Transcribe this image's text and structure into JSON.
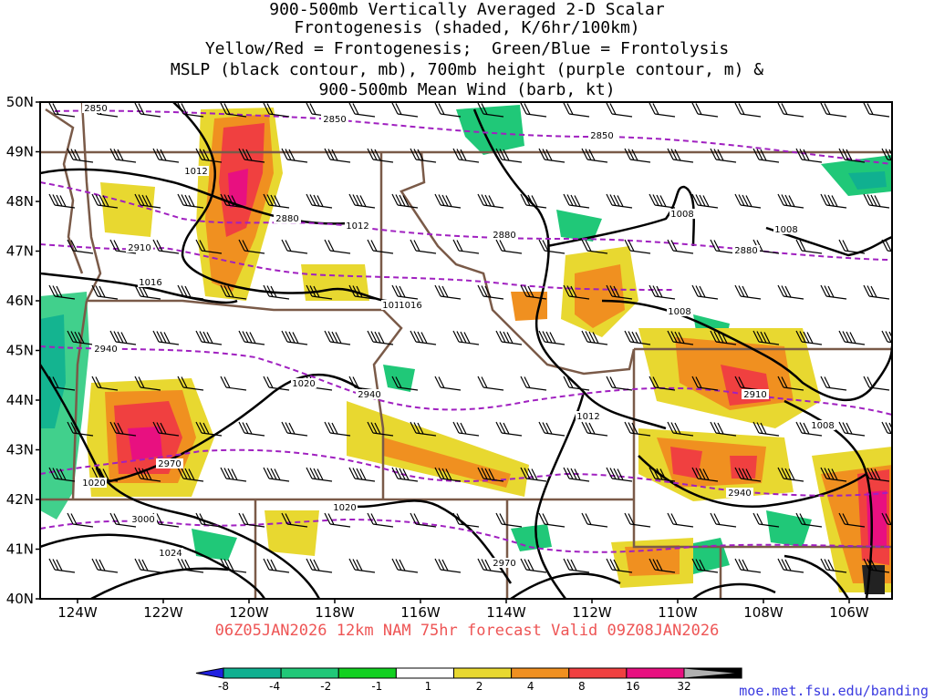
{
  "title": {
    "line1": "900-500mb Vertically Averaged 2-D Scalar",
    "line2": "Frontogenesis (shaded, K/6hr/100km)",
    "line3": "Yellow/Red = Frontogenesis;  Green/Blue = Frontolysis",
    "line4": "MSLP (black contour, mb), 700mb height (purple contour, m) &",
    "line5": "900-500mb Mean Wind (barb, kt)"
  },
  "lat_labels": [
    "50N",
    "49N",
    "48N",
    "47N",
    "46N",
    "45N",
    "44N",
    "43N",
    "42N",
    "41N",
    "40N"
  ],
  "lon_labels": [
    "124W",
    "122W",
    "120W",
    "118W",
    "116W",
    "114W",
    "112W",
    "110W",
    "108W",
    "106W"
  ],
  "footer": "06Z05JAN2026 12km NAM 75hr forecast Valid 09Z08JAN2026",
  "credit": "moe.met.fsu.edu/banding",
  "colorbar": {
    "ticks": [
      "-8",
      "-4",
      "-2",
      "-1",
      "1",
      "2",
      "4",
      "8",
      "16",
      "32"
    ],
    "colors": [
      "#2020e0",
      "#10b090",
      "#20c878",
      "#12d020",
      "#ffffff",
      "#e8d830",
      "#f09020",
      "#f04040",
      "#e81080",
      "#000000"
    ]
  },
  "colors": {
    "mslp": "#000000",
    "height": "#a020c0",
    "border": "#7a5a48",
    "frontogenesis_light": "#e8d830",
    "frontogenesis_mid": "#f09020",
    "frontogenesis_high": "#f04040",
    "frontogenesis_max": "#e81080",
    "frontolysis": "#20c878"
  },
  "mslp_labels": [
    "1012",
    "1012",
    "1016",
    "1016",
    "1016",
    "1020",
    "1020",
    "1020",
    "1024",
    "1012",
    "1008",
    "1008",
    "1008",
    "1008"
  ],
  "height_labels": [
    "2850",
    "2850",
    "2850",
    "2880",
    "2880",
    "2880",
    "2910",
    "2910",
    "2940",
    "2940",
    "2970",
    "2970",
    "2940",
    "3000"
  ]
}
